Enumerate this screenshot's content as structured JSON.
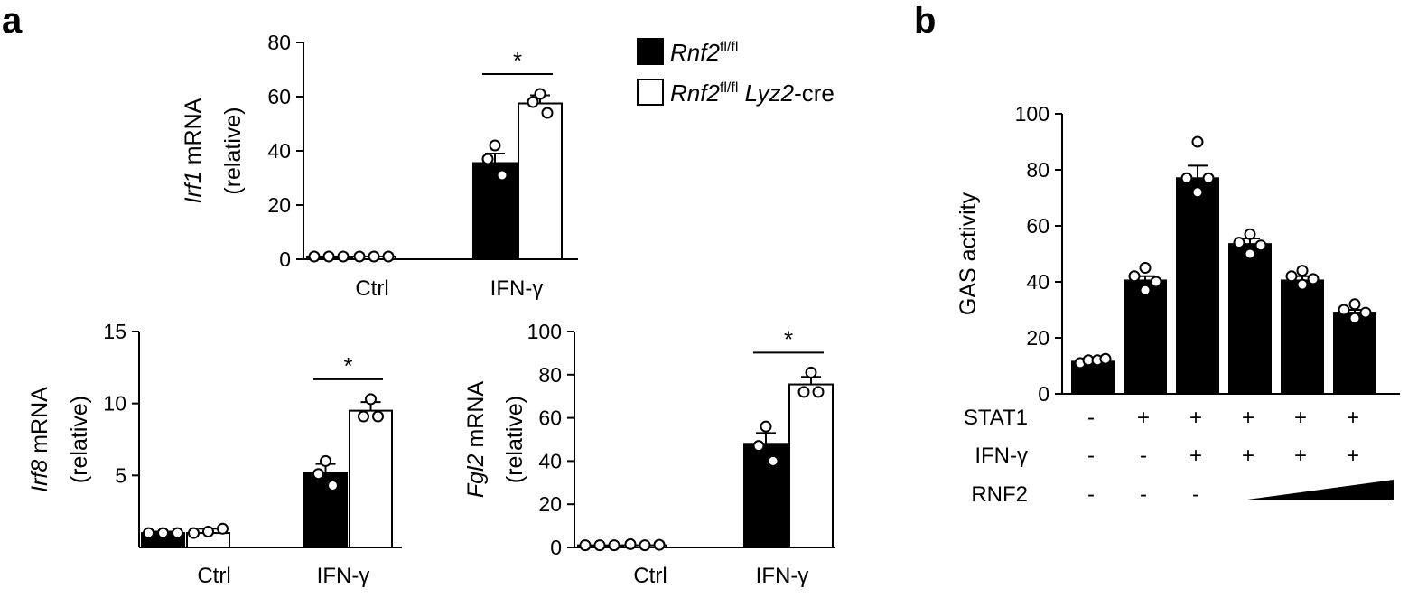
{
  "panel_labels": [
    "a",
    "b"
  ],
  "legend": {
    "entries": [
      {
        "gene": "Rnf2",
        "sup": "fl/fl",
        "suffix_italic": "",
        "suffix": "",
        "fill": "#000000"
      },
      {
        "gene": "Rnf2",
        "sup": "fl/fl",
        "suffix_italic": " Lyz2",
        "suffix": "-cre",
        "fill": "#ffffff"
      }
    ]
  },
  "colors": {
    "bar_ko": "#000000",
    "bar_wt_open": "#ffffff",
    "axis": "#000000"
  },
  "chart_data": [
    {
      "id": "irf1",
      "type": "bar",
      "ylabel_gene": "Irf1",
      "ylabel_suffix": " mRNA",
      "ylabel_line2": "(relative)",
      "categories": [
        "Ctrl",
        "IFN-γ"
      ],
      "ylim": [
        0,
        80
      ],
      "yticks": [
        0,
        20,
        40,
        60,
        80
      ],
      "series": [
        {
          "name": "Rnf2fl/fl",
          "values": [
            1.0,
            35.5
          ],
          "sem": [
            0.3,
            3.5
          ],
          "points": [
            [
              1.0,
              1.0,
              1.0
            ],
            [
              42.0,
              37.0,
              31.0
            ]
          ]
        },
        {
          "name": "Rnf2fl/fl Lyz2-cre",
          "values": [
            1.0,
            57.5
          ],
          "sem": [
            0.3,
            3.0
          ],
          "points": [
            [
              1.0,
              1.0,
              1.0
            ],
            [
              61.0,
              58.0,
              54.0
            ]
          ]
        }
      ],
      "significance": [
        {
          "category": "IFN-γ",
          "label": "*"
        }
      ]
    },
    {
      "id": "irf8",
      "type": "bar",
      "ylabel_gene": "Irf8",
      "ylabel_suffix": " mRNA",
      "ylabel_line2": "(relative)",
      "categories": [
        "Ctrl",
        "IFN-γ"
      ],
      "ylim": [
        0,
        15
      ],
      "yticks": [
        5,
        10,
        15
      ],
      "series": [
        {
          "name": "Rnf2fl/fl",
          "values": [
            1.0,
            5.2
          ],
          "sem": [
            0.1,
            0.6
          ],
          "points": [
            [
              1.0,
              1.0,
              1.0
            ],
            [
              6.0,
              5.1,
              4.3
            ]
          ]
        },
        {
          "name": "Rnf2fl/fl Lyz2-cre",
          "values": [
            1.0,
            9.5
          ],
          "sem": [
            0.3,
            0.6
          ],
          "points": [
            [
              1.0,
              1.1,
              1.3
            ],
            [
              10.3,
              9.1,
              9.1
            ]
          ]
        }
      ],
      "significance": [
        {
          "category": "IFN-γ",
          "label": "*"
        }
      ]
    },
    {
      "id": "fgl2",
      "type": "bar",
      "ylabel_gene": "Fgl2",
      "ylabel_suffix": " mRNA",
      "ylabel_line2": "(relative)",
      "categories": [
        "Ctrl",
        "IFN-γ"
      ],
      "ylim": [
        0,
        100
      ],
      "yticks": [
        0,
        20,
        40,
        60,
        80,
        100
      ],
      "series": [
        {
          "name": "Rnf2fl/fl",
          "values": [
            1.0,
            48.0
          ],
          "sem": [
            0.3,
            5.0
          ],
          "points": [
            [
              1.0,
              1.0,
              1.0
            ],
            [
              56.0,
              47.0,
              40.0
            ]
          ]
        },
        {
          "name": "Rnf2fl/fl Lyz2-cre",
          "values": [
            1.0,
            75.5
          ],
          "sem": [
            0.5,
            3.5
          ],
          "points": [
            [
              1.5,
              1.0,
              1.2
            ],
            [
              81.0,
              72.0,
              72.0
            ]
          ]
        }
      ],
      "significance": [
        {
          "category": "IFN-γ",
          "label": "*"
        }
      ]
    },
    {
      "id": "gas",
      "type": "bar",
      "ylabel": "GAS activity",
      "ylim": [
        0,
        100
      ],
      "yticks": [
        0,
        20,
        40,
        60,
        80,
        100
      ],
      "values": [
        11.5,
        40.5,
        77.0,
        53.5,
        40.5,
        29.0
      ],
      "sem": [
        0.5,
        1.5,
        4.5,
        2.0,
        1.5,
        1.0
      ],
      "points": [
        [
          11,
          12,
          12,
          12.5
        ],
        [
          45,
          42,
          40,
          37
        ],
        [
          90,
          77,
          77,
          72
        ],
        [
          57,
          54,
          53,
          50
        ],
        [
          44,
          42,
          41,
          39
        ],
        [
          32,
          30,
          29,
          27
        ]
      ],
      "conditions": [
        {
          "label": "STAT1",
          "values": [
            "-",
            "+",
            "+",
            "+",
            "+",
            "+"
          ]
        },
        {
          "label": "IFN-γ",
          "values": [
            "-",
            "-",
            "+",
            "+",
            "+",
            "+"
          ]
        }
      ],
      "gradient": {
        "label": "RNF2",
        "values": [
          "-",
          "-",
          "-"
        ],
        "wedge_from_bar": 4,
        "wedge_to_bar": 6
      }
    }
  ]
}
